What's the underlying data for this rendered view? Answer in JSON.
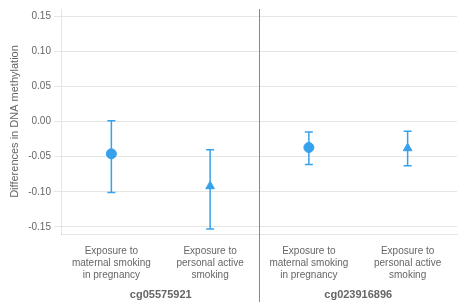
{
  "chart_data": {
    "type": "point",
    "ylabel": "Differences in DNA methylation",
    "groups": [
      {
        "label": "cg05575921",
        "points": [
          {
            "category": "Exposure to\nmaternal smoking\nin pregnancy",
            "value": -0.046,
            "ci_low": -0.101,
            "ci_high": 0.001,
            "marker": "circle"
          },
          {
            "category": "Exposure to\npersonal active\nsmoking",
            "value": -0.092,
            "ci_low": -0.153,
            "ci_high": -0.04,
            "marker": "triangle"
          }
        ]
      },
      {
        "label": "cg023916896",
        "points": [
          {
            "category": "Exposure to\nmaternal smoking\nin pregnancy",
            "value": -0.037,
            "ci_low": -0.061,
            "ci_high": -0.015,
            "marker": "circle"
          },
          {
            "category": "Exposure to\npersonal active\nsmoking",
            "value": -0.038,
            "ci_low": -0.063,
            "ci_high": -0.014,
            "marker": "triangle"
          }
        ]
      }
    ],
    "ylim": [
      -0.16,
      0.16
    ],
    "yticks": [
      -0.15,
      {
        "value": -0.1,
        "label": "-0.10"
      },
      -0.05,
      {
        "value": 0,
        "label": "0.00"
      },
      0.05,
      {
        "value": 0.1,
        "label": "0.10"
      },
      0.15
    ],
    "grid": true
  }
}
